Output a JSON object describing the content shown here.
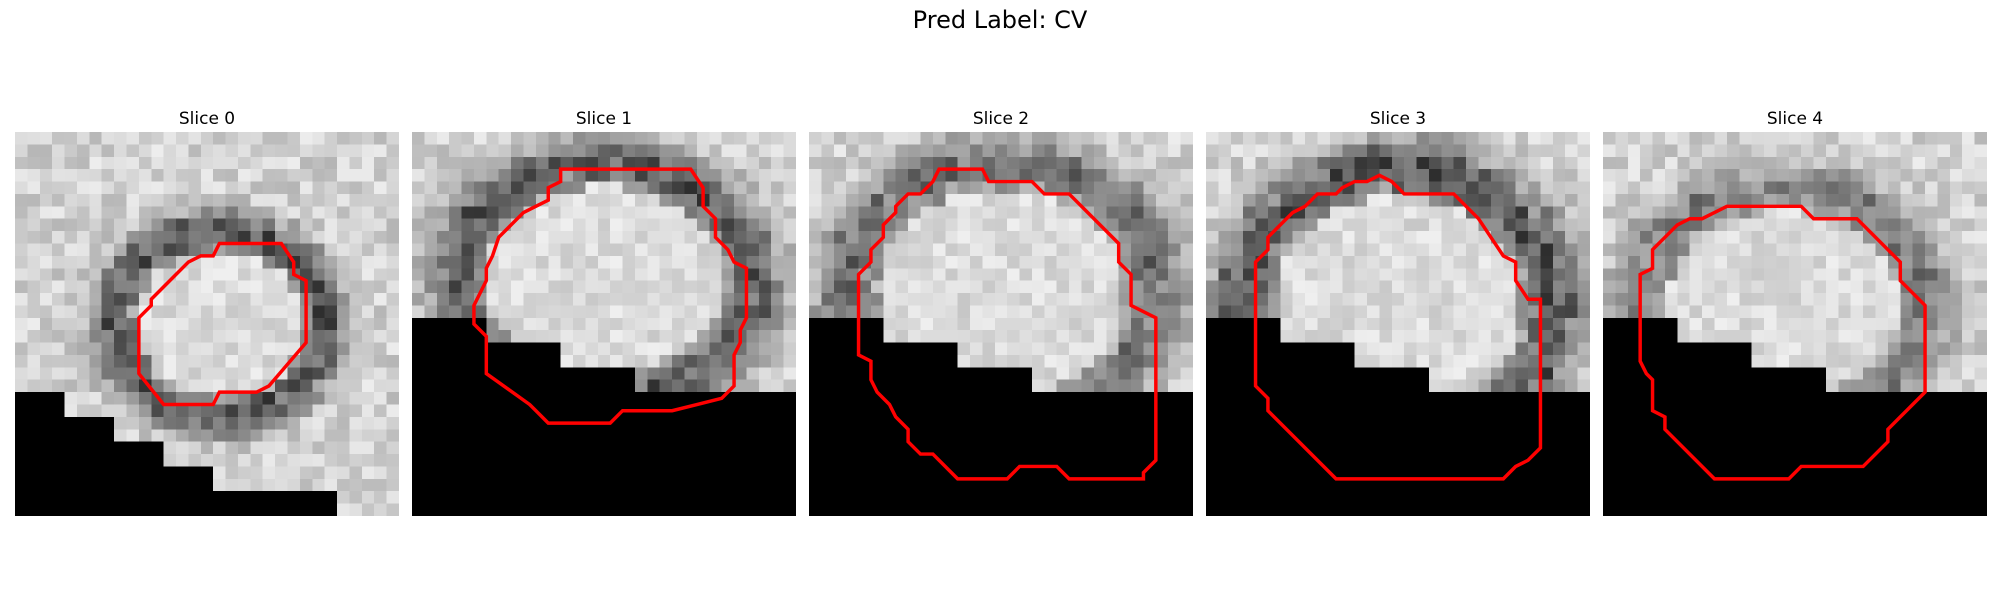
{
  "figure": {
    "title": "Pred Label: CV",
    "contour_color": "#ff0000",
    "slices": [
      {
        "label": "Slice 0"
      },
      {
        "label": "Slice 1"
      },
      {
        "label": "Slice 2"
      },
      {
        "label": "Slice 3"
      },
      {
        "label": "Slice 4"
      }
    ]
  }
}
